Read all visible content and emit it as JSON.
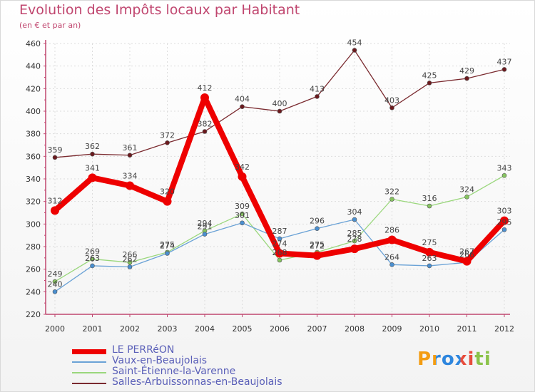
{
  "chart_data": {
    "type": "line",
    "title": "Evolution des Impôts locaux par Habitant",
    "subtitle": "(en € et par an)",
    "xlabel": "",
    "ylabel": "",
    "x": [
      "2000",
      "2001",
      "2002",
      "2003",
      "2004",
      "2005",
      "2006",
      "2007",
      "2008",
      "2009",
      "2010",
      "2011",
      "2012"
    ],
    "ylim": [
      220,
      460
    ],
    "yticks": [
      220,
      240,
      260,
      280,
      300,
      320,
      340,
      360,
      380,
      400,
      420,
      440,
      460
    ],
    "grid": true,
    "series": [
      {
        "name": "Salles-Arbuissonnas-en-Beaujolais",
        "color": "#7a2a2f",
        "point_color": "#6b1a1e",
        "values": [
          359,
          362,
          361,
          372,
          382,
          404,
          400,
          413,
          454,
          403,
          425,
          429,
          437
        ]
      },
      {
        "name": "Saint-Étienne-la-Varenne",
        "color": "#9ad77c",
        "point_color": "#86c45f",
        "values": [
          249,
          269,
          266,
          275,
          294,
          309,
          268,
          275,
          285,
          322,
          316,
          324,
          343
        ]
      },
      {
        "name": "Vaux-en-Beaujolais",
        "color": "#6aa2d6",
        "point_color": "#4a8fd0",
        "values": [
          240,
          263,
          262,
          274,
          291,
          301,
          287,
          296,
          304,
          264,
          263,
          266,
          295
        ]
      },
      {
        "name": "LE PERRéON",
        "color": "#ee0000",
        "point_color": "#ee0000",
        "values": [
          312,
          341,
          334,
          320,
          412,
          342,
          274,
          272,
          278,
          286,
          275,
          267,
          303
        ]
      }
    ],
    "legend": [
      {
        "name": "LE PERRéON",
        "color": "#ee0000",
        "width": 7
      },
      {
        "name": "Vaux-en-Beaujolais",
        "color": "#6aa2d6",
        "width": 2
      },
      {
        "name": "Saint-Étienne-la-Varenne",
        "color": "#9ad77c",
        "width": 2
      },
      {
        "name": "Salles-Arbuissonnas-en-Beaujolais",
        "color": "#7a2a2f",
        "width": 2
      }
    ]
  },
  "brand": "Proxiti"
}
